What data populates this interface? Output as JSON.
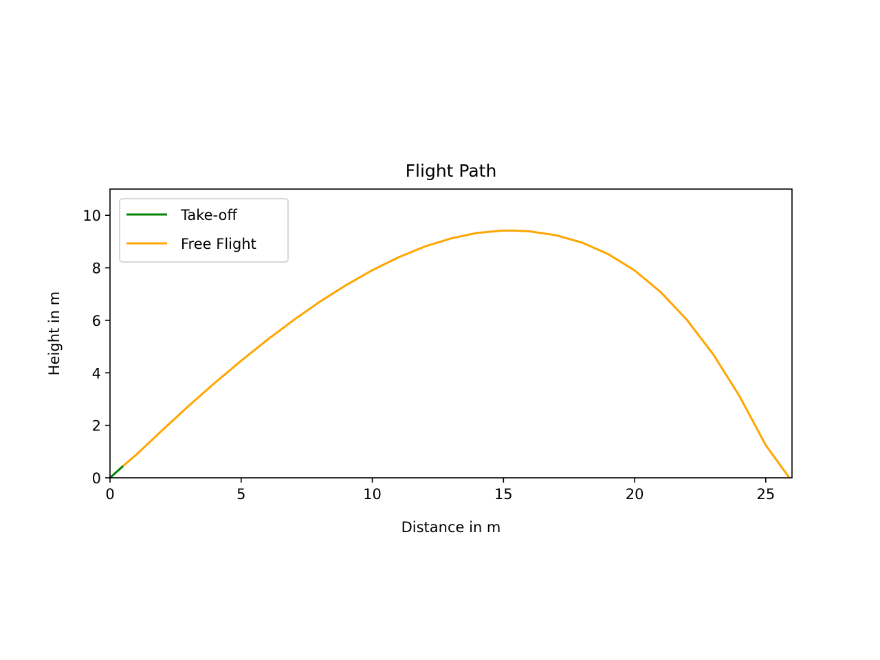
{
  "chart_data": {
    "type": "line",
    "title": "Flight Path",
    "xlabel": "Distance in m",
    "ylabel": "Height in m",
    "xlim": [
      0,
      26
    ],
    "ylim": [
      0,
      11
    ],
    "xticks": [
      0,
      5,
      10,
      15,
      20,
      25
    ],
    "yticks": [
      0,
      2,
      4,
      6,
      8,
      10
    ],
    "grid": false,
    "legend_position": "upper-left",
    "series": [
      {
        "name": "Take-off",
        "color": "#008000",
        "x": [
          0,
          0.1,
          0.2,
          0.3,
          0.4,
          0.5
        ],
        "y": [
          0,
          0.09,
          0.18,
          0.27,
          0.36,
          0.45
        ]
      },
      {
        "name": "Free Flight",
        "color": "#ffa500",
        "x": [
          0.5,
          1.0,
          2.0,
          3.0,
          4.0,
          5.0,
          6.0,
          7.0,
          8.0,
          9.0,
          10.0,
          11.0,
          12.0,
          13.0,
          14.0,
          15.0,
          15.4,
          16.0,
          17.0,
          18.0,
          19.0,
          20.0,
          21.0,
          22.0,
          23.0,
          24.0,
          25.0,
          25.9
        ],
        "y": [
          0.45,
          0.88,
          1.82,
          2.74,
          3.62,
          4.46,
          5.26,
          6.01,
          6.71,
          7.34,
          7.91,
          8.4,
          8.81,
          9.12,
          9.33,
          9.42,
          9.42,
          9.39,
          9.24,
          8.96,
          8.52,
          7.9,
          7.07,
          6.01,
          4.7,
          3.11,
          1.24,
          0.0
        ]
      }
    ]
  }
}
